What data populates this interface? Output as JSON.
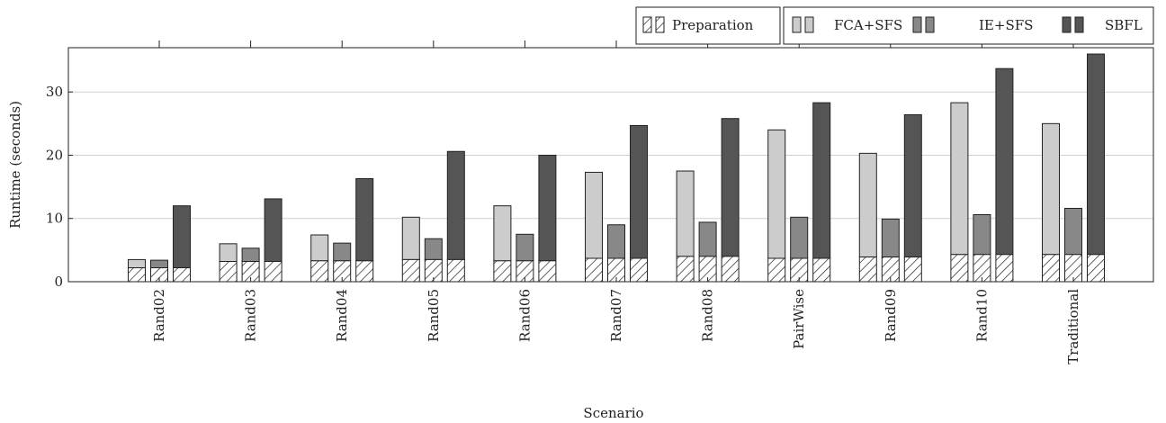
{
  "chart_data": {
    "type": "bar",
    "stacked_within_group": true,
    "xlabel": "Scenario",
    "ylabel": "Runtime (seconds)",
    "ylim": [
      0,
      37
    ],
    "yticks": [
      0,
      10,
      20,
      30
    ],
    "grid": "horizontal",
    "legend_position": "top-right",
    "categories": [
      "Rand02",
      "Rand03",
      "Rand04",
      "Rand05",
      "Rand06",
      "Rand07",
      "Rand08",
      "PairWise",
      "Rand09",
      "Rand10",
      "Traditional"
    ],
    "preparation": {
      "name": "Preparation",
      "values": [
        2.2,
        3.2,
        3.3,
        3.5,
        3.3,
        3.7,
        4.0,
        3.7,
        3.9,
        4.3,
        4.3
      ]
    },
    "series": [
      {
        "name": "FCA+SFS",
        "color": "#cccccc",
        "values": [
          3.5,
          6.0,
          7.4,
          10.2,
          12.0,
          17.3,
          17.5,
          24.0,
          20.3,
          28.3,
          25.0
        ]
      },
      {
        "name": "IE+SFS",
        "color": "#888888",
        "values": [
          3.4,
          5.3,
          6.1,
          6.8,
          7.5,
          9.0,
          9.4,
          10.2,
          9.9,
          10.6,
          11.6
        ]
      },
      {
        "name": "SBFL",
        "color": "#555555",
        "values": [
          12.0,
          13.1,
          16.3,
          20.6,
          20.0,
          24.7,
          25.8,
          28.3,
          26.4,
          33.7,
          36.0
        ]
      }
    ]
  }
}
